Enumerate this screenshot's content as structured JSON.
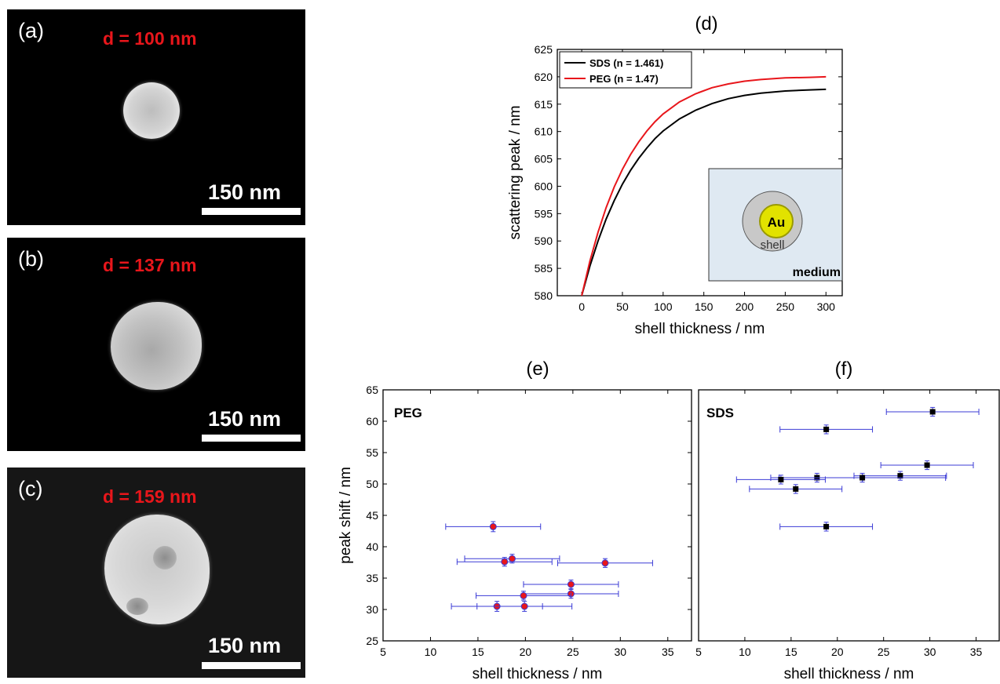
{
  "sem_panels": [
    {
      "label": "(a)",
      "diameter": "d = 100 nm",
      "scalebar": "150 nm"
    },
    {
      "label": "(b)",
      "diameter": "d = 137 nm",
      "scalebar": "150 nm"
    },
    {
      "label": "(c)",
      "diameter": "d = 159 nm",
      "scalebar": "150 nm"
    }
  ],
  "inset": {
    "core": "Au",
    "shell": "shell",
    "medium": "medium"
  },
  "chart_data": [
    {
      "type": "line",
      "title": "(d)",
      "xlabel": "shell thickness / nm",
      "ylabel": "scattering peak / nm",
      "xlim": [
        -30,
        320
      ],
      "ylim": [
        580,
        625
      ],
      "xticks": [
        0,
        50,
        100,
        150,
        200,
        250,
        300
      ],
      "yticks": [
        580,
        585,
        590,
        595,
        600,
        605,
        610,
        615,
        620,
        625
      ],
      "legend": "top-left",
      "series": [
        {
          "name": "SDS (n = 1.461)",
          "color": "#000000",
          "x": [
            0,
            10,
            20,
            30,
            40,
            50,
            60,
            70,
            80,
            90,
            100,
            120,
            140,
            160,
            180,
            200,
            220,
            250,
            280,
            300
          ],
          "y": [
            580,
            585.4,
            590.0,
            594.0,
            597.4,
            600.4,
            602.9,
            605.1,
            607.0,
            608.7,
            610.1,
            612.3,
            613.9,
            615.1,
            616.0,
            616.6,
            617.0,
            617.4,
            617.6,
            617.7
          ]
        },
        {
          "name": "PEG (n = 1.47)",
          "color": "#e8161b",
          "x": [
            0,
            10,
            20,
            30,
            40,
            50,
            60,
            70,
            80,
            90,
            100,
            120,
            140,
            160,
            180,
            200,
            220,
            250,
            280,
            300
          ],
          "y": [
            580,
            586.3,
            591.6,
            596.1,
            599.9,
            603.1,
            605.8,
            608.1,
            610.1,
            611.8,
            613.2,
            615.4,
            616.9,
            618.0,
            618.7,
            619.2,
            619.5,
            619.8,
            619.9,
            620.0
          ]
        }
      ]
    },
    {
      "type": "scatter",
      "title": "(e)",
      "label": "PEG",
      "xlabel": "shell thickness / nm",
      "ylabel": "peak shift / nm",
      "xlim": [
        5,
        37.5
      ],
      "ylim": [
        25,
        65
      ],
      "xticks": [
        5,
        10,
        15,
        20,
        25,
        30,
        35
      ],
      "yticks": [
        25,
        30,
        35,
        40,
        45,
        50,
        55,
        60,
        65
      ],
      "marker_color": "#e8161b",
      "errorbar_color": "#3b3bd6",
      "points": [
        {
          "x": 16.6,
          "y": 43.2,
          "xerr": 5.0,
          "yerr": 0.8
        },
        {
          "x": 18.6,
          "y": 38.1,
          "xerr": 5.0,
          "yerr": 0.7
        },
        {
          "x": 17.8,
          "y": 37.6,
          "xerr": 5.0,
          "yerr": 0.7
        },
        {
          "x": 28.4,
          "y": 37.4,
          "xerr": 5.0,
          "yerr": 0.7
        },
        {
          "x": 24.8,
          "y": 34.0,
          "xerr": 5.0,
          "yerr": 0.7
        },
        {
          "x": 24.8,
          "y": 32.5,
          "xerr": 5.0,
          "yerr": 0.7
        },
        {
          "x": 19.8,
          "y": 32.2,
          "xerr": 5.0,
          "yerr": 0.7
        },
        {
          "x": 17.0,
          "y": 30.5,
          "xerr": 4.8,
          "yerr": 0.8
        },
        {
          "x": 19.9,
          "y": 30.5,
          "xerr": 5.0,
          "yerr": 0.8
        }
      ]
    },
    {
      "type": "scatter",
      "title": "(f)",
      "label": "SDS",
      "xlabel": "shell thickness / nm",
      "xlim": [
        5,
        37.5
      ],
      "ylim": [
        25,
        65
      ],
      "xticks": [
        5,
        10,
        15,
        20,
        25,
        30,
        35
      ],
      "marker_color": "#000000",
      "errorbar_color": "#3b3bd6",
      "points": [
        {
          "x": 30.3,
          "y": 61.5,
          "xerr": 5.0,
          "yerr": 0.7
        },
        {
          "x": 18.8,
          "y": 58.7,
          "xerr": 5.0,
          "yerr": 0.7
        },
        {
          "x": 29.7,
          "y": 53.0,
          "xerr": 5.0,
          "yerr": 0.7
        },
        {
          "x": 26.8,
          "y": 51.3,
          "xerr": 5.0,
          "yerr": 0.7
        },
        {
          "x": 17.8,
          "y": 51.0,
          "xerr": 5.0,
          "yerr": 0.7
        },
        {
          "x": 22.7,
          "y": 51.0,
          "xerr": 9.0,
          "yerr": 0.7
        },
        {
          "x": 13.9,
          "y": 50.7,
          "xerr": 4.8,
          "yerr": 0.7
        },
        {
          "x": 15.5,
          "y": 49.2,
          "xerr": 5.0,
          "yerr": 0.7
        },
        {
          "x": 18.8,
          "y": 43.2,
          "xerr": 5.0,
          "yerr": 0.7
        }
      ]
    }
  ]
}
